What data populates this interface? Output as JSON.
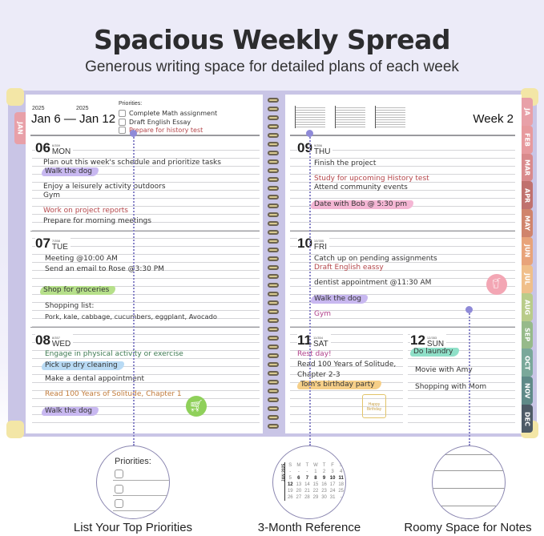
{
  "header": {
    "title": "Spacious Weekly Spread",
    "subtitle": "Generous writing space for detailed plans of each week"
  },
  "left_page": {
    "year_start": "2025",
    "year_end": "2025",
    "date_range": "Jan 6 — Jan 12",
    "priorities": {
      "label": "Priorities:",
      "items": [
        "Complete Math assignment",
        "Draft English Essay",
        "Prepare for history test"
      ]
    },
    "days": [
      {
        "num": "06",
        "name": "MON",
        "doy": "6/359",
        "entries": [
          "Plan out this week's schedule and prioritize tasks",
          "Walk the dog",
          "Enjoy a leisurely activity outdoors",
          "Gym",
          "Work on project reports",
          "Prepare for morning meetings"
        ]
      },
      {
        "num": "07",
        "name": "TUE",
        "doy": "7/358",
        "entries": [
          "Meeting @10:00 AM",
          "Send an email to Rose @3:30 PM",
          "Shop for groceries",
          "Shopping list:",
          "Pork, kale, cabbage, cucumbers, eggplant, Avocado"
        ]
      },
      {
        "num": "08",
        "name": "WED",
        "doy": "8/357",
        "entries": [
          "Engage in physical activity or exercise",
          "Pick up dry cleaning",
          "Make a dental appointment",
          "Read 100 Years of Solitude, Chapter 1",
          "Walk the dog"
        ]
      }
    ]
  },
  "right_page": {
    "week_label": "Week 2",
    "days": [
      {
        "num": "09",
        "name": "THU",
        "doy": "9/356",
        "entries": [
          "Finish the project",
          "Study for upcoming History test",
          "Attend community events",
          "Date with Bob @ 5:30 pm"
        ]
      },
      {
        "num": "10",
        "name": "FRI",
        "doy": "10/355",
        "entries": [
          "Catch up on pending assignments",
          "Draft English eassy",
          "dentist appointment @11:30 AM",
          "Walk the dog",
          "Gym"
        ]
      },
      {
        "num": "11",
        "name": "SAT",
        "doy": "11/354",
        "entries": [
          "Rest day!",
          "Read 100 Years of Solitude,",
          "Chapter 2-3",
          "Tom's birthday party"
        ]
      },
      {
        "num": "12",
        "name": "SUN",
        "doy": "12/353",
        "entries": [
          "Do laundry",
          "Movie with Amy",
          "Shopping with Mom"
        ]
      }
    ]
  },
  "month_tabs": {
    "left": "JAN",
    "items": [
      {
        "label": "JA",
        "color": "#e8a0a8"
      },
      {
        "label": "FEB",
        "color": "#e79a9e"
      },
      {
        "label": "MAR",
        "color": "#d98a8c"
      },
      {
        "label": "APR",
        "color": "#c0716e"
      },
      {
        "label": "MAY",
        "color": "#d0846c"
      },
      {
        "label": "JUN",
        "color": "#e8a37a"
      },
      {
        "label": "JUL",
        "color": "#f0bf8a"
      },
      {
        "label": "AUG",
        "color": "#b9cc8a"
      },
      {
        "label": "SEP",
        "color": "#96ba8a"
      },
      {
        "label": "OCT",
        "color": "#7aa89a"
      },
      {
        "label": "NOV",
        "color": "#5f8a88"
      },
      {
        "label": "DEC",
        "color": "#4d5a66"
      }
    ]
  },
  "features": [
    {
      "caption": "List Your Top Priorities",
      "inset_label": "Priorities:"
    },
    {
      "caption": "3-Month Reference",
      "inset_label": "JAN 2025",
      "weekdays": [
        "S",
        "M",
        "T",
        "W",
        "T",
        "F",
        "S"
      ],
      "weeks": [
        [
          "-",
          "-",
          "-",
          "1",
          "2",
          "3",
          "4"
        ],
        [
          "5",
          "6",
          "7",
          "8",
          "9",
          "10",
          "11"
        ],
        [
          "12",
          "13",
          "14",
          "15",
          "16",
          "17",
          "18"
        ],
        [
          "19",
          "20",
          "21",
          "22",
          "23",
          "24",
          "25"
        ],
        [
          "26",
          "27",
          "28",
          "29",
          "30",
          "31",
          "-"
        ]
      ]
    },
    {
      "caption": "Roomy Space for Notes"
    }
  ],
  "highlight_colors": {
    "purple": "#c8b8f0",
    "green": "#b6e08a",
    "blue": "#b8daf4",
    "pink": "#f4b6d4",
    "orange": "#f6cf88",
    "teal": "#8fe0c8"
  },
  "ink_colors": {
    "red": "#b4464a",
    "green": "#3e7a52",
    "orange": "#c07a3a",
    "magenta": "#b0408a"
  },
  "icons": [
    "shopping-cart-icon",
    "drink-cup-icon",
    "birthday-cake-icon"
  ],
  "cake_text": "Happy Birthday"
}
